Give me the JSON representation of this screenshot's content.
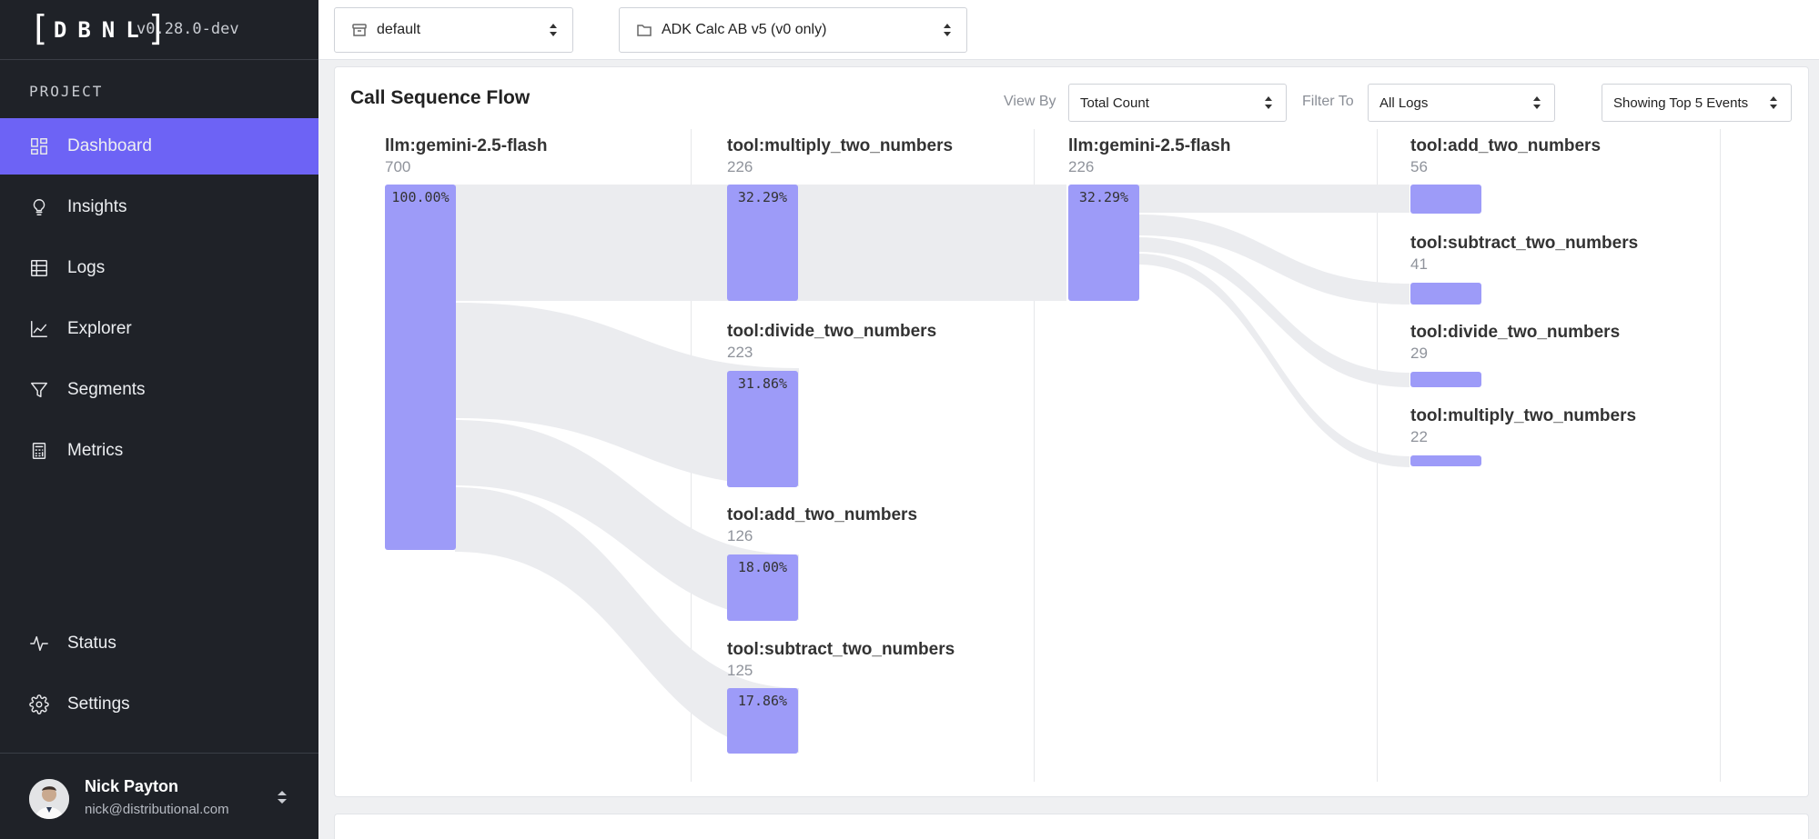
{
  "app": {
    "version": "v0.28.0-dev",
    "section_label": "PROJECT",
    "accent": "#6d63f5"
  },
  "sidebar": {
    "items": [
      {
        "label": "Dashboard",
        "icon": "dashboard-grid-icon",
        "active": true
      },
      {
        "label": "Insights",
        "icon": "lightbulb-icon"
      },
      {
        "label": "Logs",
        "icon": "table-icon"
      },
      {
        "label": "Explorer",
        "icon": "line-chart-icon"
      },
      {
        "label": "Segments",
        "icon": "filter-icon"
      },
      {
        "label": "Metrics",
        "icon": "calculator-icon"
      }
    ],
    "bottom_items": [
      {
        "label": "Status",
        "icon": "activity-icon"
      },
      {
        "label": "Settings",
        "icon": "gear-icon"
      }
    ],
    "user": {
      "name": "Nick Payton",
      "email": "nick@distributional.com"
    }
  },
  "topbar": {
    "namespace": {
      "value": "default",
      "icon": "archive-icon"
    },
    "project": {
      "value": "ADK Calc AB v5 (v0 only)",
      "icon": "folder-icon"
    }
  },
  "flow": {
    "title": "Call Sequence Flow",
    "view_by_label": "View By",
    "view_by_value": "Total Count",
    "filter_to_label": "Filter To",
    "filter_to_value": "All Logs",
    "top_events_value": "Showing Top 5 Events",
    "columns": [
      {
        "nodes": [
          {
            "name": "llm:gemini-2.5-flash",
            "count": "700",
            "pct": "100.00%"
          }
        ]
      },
      {
        "nodes": [
          {
            "name": "tool:multiply_two_numbers",
            "count": "226",
            "pct": "32.29%"
          },
          {
            "name": "tool:divide_two_numbers",
            "count": "223",
            "pct": "31.86%"
          },
          {
            "name": "tool:add_two_numbers",
            "count": "126",
            "pct": "18.00%"
          },
          {
            "name": "tool:subtract_two_numbers",
            "count": "125",
            "pct": "17.86%"
          }
        ]
      },
      {
        "nodes": [
          {
            "name": "llm:gemini-2.5-flash",
            "count": "226",
            "pct": "32.29%"
          }
        ]
      },
      {
        "nodes": [
          {
            "name": "tool:add_two_numbers",
            "count": "56"
          },
          {
            "name": "tool:subtract_two_numbers",
            "count": "41"
          },
          {
            "name": "tool:divide_two_numbers",
            "count": "29"
          },
          {
            "name": "tool:multiply_two_numbers",
            "count": "22"
          }
        ]
      }
    ]
  }
}
